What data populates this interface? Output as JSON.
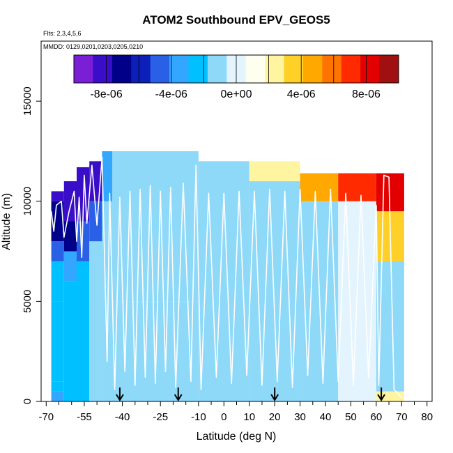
{
  "chart_data": {
    "type": "heatmap",
    "title": "ATOM2 Southbound EPV_GEOS5",
    "notes": [
      "Flts: 2,3,4,5,6",
      "MMDD: 0129,0201,0203,0205,0210"
    ],
    "xlabel": "Latitude (deg N)",
    "ylabel": "Altitude (m)",
    "xlim": [
      -72,
      82
    ],
    "ylim": [
      0,
      18000
    ],
    "x_ticks": [
      -70,
      -55,
      -40,
      -25,
      -10,
      0,
      10,
      20,
      30,
      40,
      50,
      60,
      70,
      80
    ],
    "x_minor_ticks": [
      -65,
      -60,
      -50,
      -45,
      -35,
      -30,
      -20,
      -15,
      -5,
      5,
      15,
      25,
      35,
      45,
      55,
      65,
      75
    ],
    "y_ticks": [
      0,
      5000,
      10000,
      15000
    ],
    "colorbar": {
      "range": [
        -1e-05,
        1e-05
      ],
      "tick_values": [
        -8e-06,
        -4e-06,
        0,
        4e-06,
        8e-06
      ],
      "tick_labels": [
        "-8e-06",
        "-4e-06",
        "0e+00",
        "4e-06",
        "8e-06"
      ],
      "colors": [
        "#7a1fd6",
        "#3a0ec8",
        "#000088",
        "#0c1fb8",
        "#2a60e6",
        "#33a6ff",
        "#00c0ff",
        "#8ed8f8",
        "#e3f4ff",
        "#fffff0",
        "#fff5a0",
        "#ffd028",
        "#ffa800",
        "#ff7400",
        "#ff2a00",
        "#e20000",
        "#a01010"
      ]
    },
    "flight_markers_lat": [
      -41,
      -18,
      20,
      62
    ],
    "columns": [
      {
        "lat_range": [
          -68,
          -63
        ],
        "top": 10500,
        "bands": [
          {
            "z": [
              0,
              500
            ],
            "v": -3.5e-06
          },
          {
            "z": [
              500,
              1000
            ],
            "v": -2.8e-06
          },
          {
            "z": [
              1000,
              5000
            ],
            "v": -2.2e-06
          },
          {
            "z": [
              5000,
              7000
            ],
            "v": -2.6e-06
          },
          {
            "z": [
              7000,
              8000
            ],
            "v": -4.5e-06
          },
          {
            "z": [
              8000,
              10000
            ],
            "v": -6.5e-06
          },
          {
            "z": [
              10000,
              10500
            ],
            "v": -8.5e-06
          }
        ]
      },
      {
        "lat_range": [
          -63,
          -58
        ],
        "top": 11000,
        "bands": [
          {
            "z": [
              0,
              6000
            ],
            "v": -2e-06
          },
          {
            "z": [
              6000,
              7500
            ],
            "v": -3.5e-06
          },
          {
            "z": [
              7500,
              9000
            ],
            "v": -6.5e-06
          },
          {
            "z": [
              9000,
              11000
            ],
            "v": -8.5e-06
          }
        ]
      },
      {
        "lat_range": [
          -58,
          -53
        ],
        "top": 11700,
        "bands": [
          {
            "z": [
              0,
              7000
            ],
            "v": -2e-06
          },
          {
            "z": [
              7000,
              9000
            ],
            "v": -4.5e-06
          },
          {
            "z": [
              9000,
              11700
            ],
            "v": -8.5e-06
          }
        ]
      },
      {
        "lat_range": [
          -53,
          -48
        ],
        "top": 12000,
        "bands": [
          {
            "z": [
              0,
              8000
            ],
            "v": -1.6e-06
          },
          {
            "z": [
              8000,
              10000
            ],
            "v": -5e-06
          },
          {
            "z": [
              10000,
              12000
            ],
            "v": -8e-06
          }
        ]
      },
      {
        "lat_range": [
          -48,
          -44
        ],
        "top": 12500,
        "bands": [
          {
            "z": [
              0,
              10000
            ],
            "v": -1.2e-06
          },
          {
            "z": [
              10000,
              12500
            ],
            "v": -3e-06
          }
        ]
      },
      {
        "lat_range": [
          -44,
          -10
        ],
        "top": 12500,
        "bands": [
          {
            "z": [
              0,
              5000
            ],
            "v": -1.2e-06
          },
          {
            "z": [
              5000,
              12500
            ],
            "v": -6e-07
          }
        ]
      },
      {
        "lat_range": [
          -10,
          10
        ],
        "top": 12000,
        "bands": [
          {
            "z": [
              0,
              12000
            ],
            "v": -7e-07
          }
        ]
      },
      {
        "lat_range": [
          10,
          30
        ],
        "top": 12000,
        "bands": [
          {
            "z": [
              0,
              11000
            ],
            "v": -6e-07
          },
          {
            "z": [
              11000,
              12000
            ],
            "v": 2.5e-06
          }
        ]
      },
      {
        "lat_range": [
          30,
          45
        ],
        "top": 11400,
        "bands": [
          {
            "z": [
              0,
              10000
            ],
            "v": -6e-07
          },
          {
            "z": [
              10000,
              11400
            ],
            "v": 4.5e-06
          }
        ]
      },
      {
        "lat_range": [
          45,
          60
        ],
        "top": 11400,
        "bands": [
          {
            "z": [
              0,
              10000
            ],
            "v": -5e-07
          },
          {
            "z": [
              10000,
              11400
            ],
            "v": 7e-06
          }
        ]
      },
      {
        "lat_range": [
          60,
          71
        ],
        "top": 11400,
        "bands": [
          {
            "z": [
              0,
              500
            ],
            "v": 1.8e-06
          },
          {
            "z": [
              500,
              7000
            ],
            "v": -6e-07
          },
          {
            "z": [
              7000,
              9500
            ],
            "v": 3e-06
          },
          {
            "z": [
              9500,
              11400
            ],
            "v": 8.5e-06
          }
        ]
      }
    ],
    "flight_track": [
      [
        -68,
        9500
      ],
      [
        -67,
        8500
      ],
      [
        -66,
        9800
      ],
      [
        -64,
        10000
      ],
      [
        -63,
        8200
      ],
      [
        -61,
        9500
      ],
      [
        -59,
        10500
      ],
      [
        -58,
        8000
      ],
      [
        -57,
        10200
      ],
      [
        -56,
        7200
      ],
      [
        -55,
        11300
      ],
      [
        -54,
        8900
      ],
      [
        -52,
        11800
      ],
      [
        -50,
        8800
      ],
      [
        -48,
        12200
      ],
      [
        -46,
        2000
      ],
      [
        -45,
        10400
      ],
      [
        -43,
        600
      ],
      [
        -41,
        10200
      ],
      [
        -39,
        1500
      ],
      [
        -37,
        10500
      ],
      [
        -35,
        800
      ],
      [
        -33,
        10600
      ],
      [
        -31,
        1200
      ],
      [
        -29,
        10800
      ],
      [
        -27,
        900
      ],
      [
        -25,
        10500
      ],
      [
        -23,
        1500
      ],
      [
        -21,
        10700
      ],
      [
        -19,
        700
      ],
      [
        -16,
        10900
      ],
      [
        -13,
        1000
      ],
      [
        -11,
        11800
      ],
      [
        -9,
        600
      ],
      [
        -6,
        10400
      ],
      [
        -3,
        1200
      ],
      [
        0,
        10400
      ],
      [
        3,
        900
      ],
      [
        6,
        10500
      ],
      [
        9,
        1300
      ],
      [
        12,
        10500
      ],
      [
        15,
        800
      ],
      [
        18,
        10600
      ],
      [
        21,
        1000
      ],
      [
        24,
        10500
      ],
      [
        27,
        700
      ],
      [
        30,
        10600
      ],
      [
        33,
        1300
      ],
      [
        36,
        10500
      ],
      [
        39,
        900
      ],
      [
        42,
        10600
      ],
      [
        45,
        1000
      ],
      [
        48,
        10400
      ],
      [
        51,
        800
      ],
      [
        54,
        10300
      ],
      [
        57,
        1200
      ],
      [
        60,
        9800
      ],
      [
        61,
        800
      ],
      [
        63,
        11300
      ],
      [
        65,
        11200
      ],
      [
        67,
        600
      ],
      [
        70,
        200
      ]
    ]
  }
}
